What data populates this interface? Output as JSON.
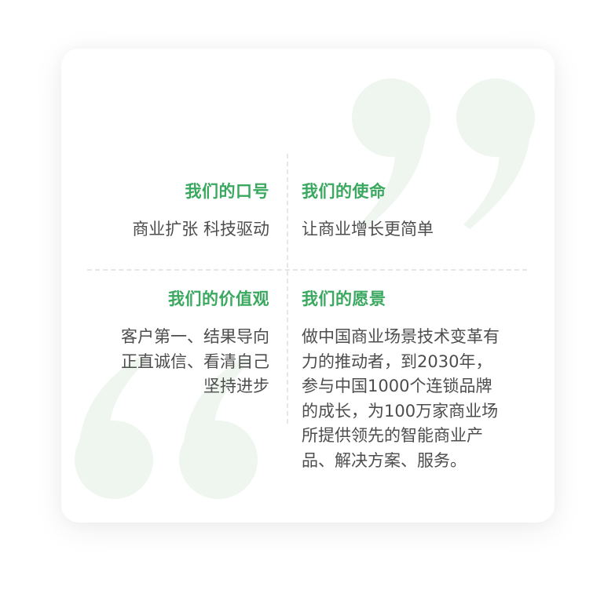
{
  "slogan": {
    "title": "我们的口号",
    "text": "商业扩张 科技驱动"
  },
  "mission": {
    "title": "我们的使命",
    "text": "让商业增长更简单"
  },
  "values": {
    "title": "我们的价值观",
    "lines": [
      "客户第一、结果导向",
      "正直诚信、看清自己",
      "坚持进步"
    ]
  },
  "vision": {
    "title": "我们的愿景",
    "lines": [
      "做中国商业场景技术变革有",
      "力的推动者，到2030年，",
      "参与中国1000个连锁品牌",
      "的成长，为100万家商业场",
      "所提供领先的智能商业产",
      "品、解决方案、服务。"
    ]
  },
  "colors": {
    "accent": "#3aa85f",
    "text": "#4d4d4d",
    "quote_mark": "#eef6ef",
    "divider": "#e4e8e4"
  }
}
